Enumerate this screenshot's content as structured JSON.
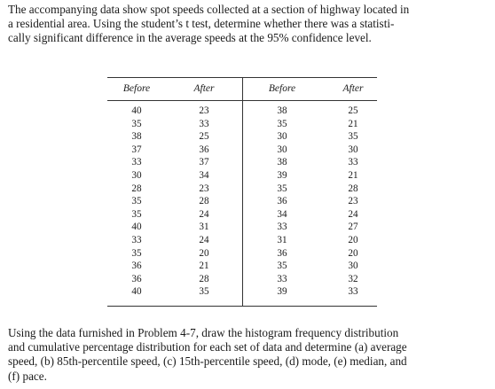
{
  "problem_text": [
    "The accompanying data show spot speeds collected at a section of highway located in",
    "a residential area. Using the student’s t test, determine whether there was a statisti-",
    "cally significant difference in the average speeds at the 95% confidence level."
  ],
  "table": {
    "headers": [
      "Before",
      "After",
      "Before",
      "After"
    ],
    "columns": [
      [
        "40",
        "35",
        "38",
        "37",
        "33",
        "30",
        "28",
        "35",
        "35",
        "40",
        "33",
        "35",
        "36",
        "36",
        "40"
      ],
      [
        "23",
        "33",
        "25",
        "36",
        "37",
        "34",
        "23",
        "28",
        "24",
        "31",
        "24",
        "20",
        "21",
        "28",
        "35"
      ],
      [
        "38",
        "35",
        "30",
        "30",
        "38",
        "39",
        "35",
        "36",
        "34",
        "33",
        "31",
        "36",
        "35",
        "33",
        "39"
      ],
      [
        "25",
        "21",
        "35",
        "30",
        "33",
        "21",
        "28",
        "23",
        "24",
        "27",
        "20",
        "20",
        "30",
        "32",
        "33"
      ]
    ]
  },
  "followup_text": [
    "Using the data furnished in Problem 4-7, draw the histogram frequency distribution",
    "and cumulative percentage distribution for each set of data and determine (a) average",
    "speed, (b) 85th-percentile speed, (c) 15th-percentile speed, (d) mode, (e) median, and",
    "(f) pace."
  ]
}
